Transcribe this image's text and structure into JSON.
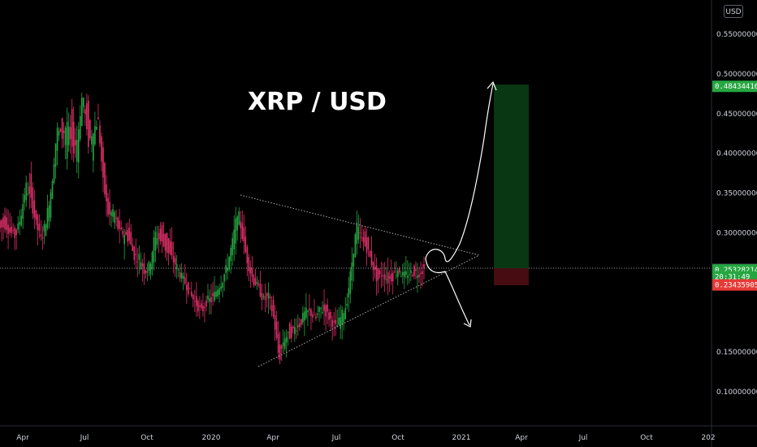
{
  "chart_data": {
    "type": "candlestick",
    "title": "XRP / USD",
    "currency": "USD",
    "x_ticks": [
      "Apr",
      "Jul",
      "Oct",
      "2020",
      "Apr",
      "Jul",
      "Oct",
      "2021",
      "Apr",
      "Jul",
      "Oct",
      "202"
    ],
    "y_ticks": [
      "0.55000000",
      "0.50000000",
      "0.45000000",
      "0.40000000",
      "0.35000000",
      "0.30000000",
      "0.15000000",
      "0.10000000"
    ],
    "y_tick_values": [
      0.55,
      0.5,
      0.45,
      0.4,
      0.35,
      0.3,
      0.15,
      0.1
    ],
    "ylim": [
      0.08,
      0.57
    ],
    "price_tags": [
      {
        "label": "0.48434416",
        "value": 0.4843,
        "color": "#26a641"
      },
      {
        "label": "0.25432314",
        "value": 0.2543,
        "color": "#2a2e39"
      },
      {
        "label": "0.25328214",
        "value": 0.2533,
        "color": "#26a641"
      },
      {
        "label": "20:31:49",
        "value": 0.2445,
        "color": "#26a641"
      },
      {
        "label": "0.23435905",
        "value": 0.2344,
        "color": "#e53935"
      }
    ],
    "series": [
      {
        "name": "",
        "path": [
          [
            0.315,
            0.305
          ],
          [
            0.32,
            0.31
          ],
          [
            0.31,
            0.3
          ],
          [
            0.305,
            0.295
          ],
          [
            0.31,
            0.32
          ],
          [
            0.34,
            0.36
          ],
          [
            0.37,
            0.34
          ],
          [
            0.33,
            0.31
          ],
          [
            0.3,
            0.29
          ],
          [
            0.3,
            0.32
          ],
          [
            0.33,
            0.36
          ],
          [
            0.4,
            0.43
          ],
          [
            0.45,
            0.42
          ],
          [
            0.39,
            0.44
          ],
          [
            0.46,
            0.4
          ],
          [
            0.38,
            0.42
          ],
          [
            0.45,
            0.48
          ],
          [
            0.47,
            0.41
          ],
          [
            0.39,
            0.43
          ],
          [
            0.45,
            0.44
          ],
          [
            0.4,
            0.36
          ],
          [
            0.34,
            0.32
          ],
          [
            0.31,
            0.33
          ],
          [
            0.32,
            0.3
          ],
          [
            0.29,
            0.3
          ],
          [
            0.31,
            0.29
          ],
          [
            0.28,
            0.27
          ],
          [
            0.26,
            0.27
          ],
          [
            0.26,
            0.25
          ],
          [
            0.25,
            0.26
          ],
          [
            0.27,
            0.3
          ],
          [
            0.31,
            0.29
          ],
          [
            0.3,
            0.28
          ],
          [
            0.29,
            0.27
          ],
          [
            0.26,
            0.26
          ],
          [
            0.25,
            0.245
          ],
          [
            0.24,
            0.235
          ],
          [
            0.23,
            0.22
          ],
          [
            0.215,
            0.21
          ],
          [
            0.205,
            0.2
          ],
          [
            0.21,
            0.215
          ],
          [
            0.22,
            0.215
          ],
          [
            0.22,
            0.23
          ],
          [
            0.235,
            0.24
          ],
          [
            0.25,
            0.26
          ],
          [
            0.27,
            0.29
          ],
          [
            0.3,
            0.33
          ],
          [
            0.32,
            0.29
          ],
          [
            0.27,
            0.26
          ],
          [
            0.25,
            0.24
          ],
          [
            0.235,
            0.23
          ],
          [
            0.22,
            0.215
          ],
          [
            0.22,
            0.22
          ],
          [
            0.21,
            0.19
          ],
          [
            0.16,
            0.14
          ],
          [
            0.15,
            0.17
          ],
          [
            0.18,
            0.17
          ],
          [
            0.175,
            0.18
          ],
          [
            0.19,
            0.185
          ],
          [
            0.19,
            0.2
          ],
          [
            0.205,
            0.2
          ],
          [
            0.195,
            0.19
          ],
          [
            0.2,
            0.205
          ],
          [
            0.21,
            0.2
          ],
          [
            0.195,
            0.19
          ],
          [
            0.185,
            0.18
          ],
          [
            0.185,
            0.195
          ],
          [
            0.2,
            0.21
          ],
          [
            0.23,
            0.26
          ],
          [
            0.29,
            0.31
          ],
          [
            0.3,
            0.29
          ],
          [
            0.295,
            0.28
          ],
          [
            0.27,
            0.26
          ],
          [
            0.25,
            0.24
          ],
          [
            0.245,
            0.25
          ],
          [
            0.245,
            0.24
          ],
          [
            0.25,
            0.245
          ],
          [
            0.25,
            0.255
          ],
          [
            0.25,
            0.245
          ],
          [
            0.24,
            0.25
          ],
          [
            0.255,
            0.25
          ],
          [
            0.245,
            0.25
          ],
          [
            0.255,
            0.2543
          ]
        ]
      }
    ],
    "annotations": [
      {
        "kind": "long_position",
        "entry": 0.2543,
        "target": 0.4843,
        "stop": 0.2344
      },
      {
        "kind": "triangle_upper",
        "from": [
          0.34
        ],
        "to": [
          0.27
        ]
      },
      {
        "kind": "triangle_lower",
        "from": [
          0.13
        ],
        "to": [
          0.27
        ]
      }
    ],
    "grid": false,
    "legend": "none"
  }
}
